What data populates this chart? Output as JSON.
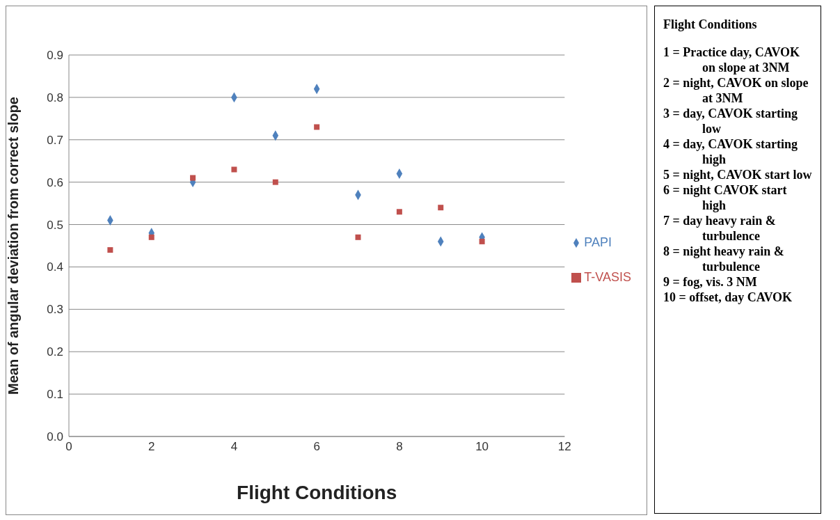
{
  "chart_data": {
    "type": "scatter",
    "xlabel": "Flight Conditions",
    "ylabel": "Mean of angular deviation from correct slope",
    "xlim": [
      0,
      12
    ],
    "xticks": [
      0,
      2,
      4,
      6,
      8,
      10,
      12
    ],
    "ylim": [
      0,
      0.9
    ],
    "yticks": [
      {
        "value": 0,
        "label": "0.0"
      },
      0.1,
      0.2,
      0.3,
      0.4,
      0.5,
      0.6,
      0.7,
      0.8,
      0.9
    ],
    "grid": "y",
    "legend": "right",
    "x": [
      1,
      2,
      3,
      4,
      5,
      6,
      7,
      8,
      9,
      10
    ],
    "series": [
      {
        "name": "PAPI",
        "color": "#4f81bd",
        "marker": "diamond",
        "values": [
          0.51,
          0.48,
          0.6,
          0.8,
          0.71,
          0.82,
          0.57,
          0.62,
          0.46,
          0.47
        ]
      },
      {
        "name": "T-VASIS",
        "color": "#c0504d",
        "marker": "square",
        "values": [
          0.44,
          0.47,
          0.61,
          0.63,
          0.6,
          0.73,
          0.47,
          0.53,
          0.54,
          0.46
        ]
      }
    ],
    "annotations": [
      "Flight Conditions",
      "1 = Practice day, CAVOK on slope at 3NM",
      "2 = night, CAVOK on slope at 3NM",
      "3 = day, CAVOK starting low",
      "4 = day, CAVOK starting high",
      "5 = night, CAVOK start low",
      "6 = night CAVOK start high",
      "7 = day heavy rain & turbulence",
      "8 = night heavy rain & turbulence",
      "9 = fog, vis. 3 NM",
      "10 = offset, day CAVOK"
    ]
  }
}
